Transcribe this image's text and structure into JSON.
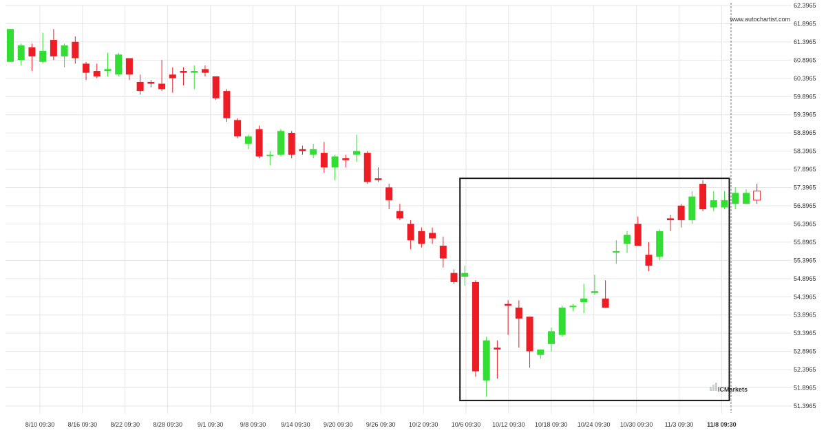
{
  "chart_data": {
    "type": "candlestick",
    "source_label": "www.autochartist.com",
    "brand_label": "ICMarkets",
    "y_ticks": [
      "62.3965",
      "61.8965",
      "61.3965",
      "60.8965",
      "60.3965",
      "59.8965",
      "59.3965",
      "58.8965",
      "58.3965",
      "57.8965",
      "57.3965",
      "56.8965",
      "56.3965",
      "55.8965",
      "55.3965",
      "54.8965",
      "54.3965",
      "53.8965",
      "53.3965",
      "52.8965",
      "52.3965",
      "51.8965",
      "51.3965"
    ],
    "ylim": [
      51.3965,
      62.3965
    ],
    "x_ticks": [
      "8/10 09:30",
      "8/16 09:30",
      "8/22 09:30",
      "8/28 09:30",
      "9/1 09:30",
      "9/8 09:30",
      "9/14 09:30",
      "9/20 09:30",
      "9/26 09:30",
      "10/2 09:30",
      "10/6 09:30",
      "10/12 09:30",
      "10/18 09:30",
      "10/24 09:30",
      "10/30 09:30",
      "11/3 09:30",
      "11/8 09:30"
    ],
    "x_tick_highlight": "11/8 09:30",
    "pattern_box": {
      "start_index": 42,
      "end_index": 66,
      "top": 57.65,
      "bottom": 51.55
    },
    "candles": [
      {
        "o": 60.85,
        "h": 61.75,
        "l": 60.85,
        "c": 61.75
      },
      {
        "o": 60.9,
        "h": 61.35,
        "l": 60.75,
        "c": 61.3
      },
      {
        "o": 61.25,
        "h": 61.35,
        "l": 60.6,
        "c": 61.0
      },
      {
        "o": 60.85,
        "h": 61.65,
        "l": 60.8,
        "c": 61.15
      },
      {
        "o": 61.45,
        "h": 61.75,
        "l": 60.9,
        "c": 61.0
      },
      {
        "o": 61.0,
        "h": 61.35,
        "l": 60.7,
        "c": 61.3
      },
      {
        "o": 61.4,
        "h": 61.55,
        "l": 60.8,
        "c": 60.95
      },
      {
        "o": 60.8,
        "h": 60.85,
        "l": 60.35,
        "c": 60.55
      },
      {
        "o": 60.6,
        "h": 60.8,
        "l": 60.4,
        "c": 60.45
      },
      {
        "o": 60.6,
        "h": 61.1,
        "l": 60.45,
        "c": 60.65
      },
      {
        "o": 60.5,
        "h": 61.1,
        "l": 60.45,
        "c": 61.05
      },
      {
        "o": 60.95,
        "h": 60.95,
        "l": 60.35,
        "c": 60.5
      },
      {
        "o": 60.3,
        "h": 60.5,
        "l": 59.95,
        "c": 60.05
      },
      {
        "o": 60.3,
        "h": 60.35,
        "l": 60.15,
        "c": 60.25
      },
      {
        "o": 60.25,
        "h": 60.9,
        "l": 60.05,
        "c": 60.1
      },
      {
        "o": 60.5,
        "h": 60.7,
        "l": 60.0,
        "c": 60.4
      },
      {
        "o": 60.6,
        "h": 60.7,
        "l": 60.2,
        "c": 60.55
      },
      {
        "o": 60.55,
        "h": 60.75,
        "l": 60.1,
        "c": 60.6
      },
      {
        "o": 60.65,
        "h": 60.75,
        "l": 60.45,
        "c": 60.55
      },
      {
        "o": 60.45,
        "h": 60.45,
        "l": 59.8,
        "c": 59.85
      },
      {
        "o": 60.05,
        "h": 60.1,
        "l": 59.2,
        "c": 59.3
      },
      {
        "o": 59.25,
        "h": 59.3,
        "l": 58.75,
        "c": 58.8
      },
      {
        "o": 58.6,
        "h": 58.85,
        "l": 58.45,
        "c": 58.8
      },
      {
        "o": 59.0,
        "h": 59.1,
        "l": 58.2,
        "c": 58.25
      },
      {
        "o": 58.3,
        "h": 58.4,
        "l": 58.0,
        "c": 58.3
      },
      {
        "o": 58.3,
        "h": 59.0,
        "l": 58.25,
        "c": 58.95
      },
      {
        "o": 58.9,
        "h": 58.95,
        "l": 58.2,
        "c": 58.3
      },
      {
        "o": 58.45,
        "h": 58.55,
        "l": 58.3,
        "c": 58.4
      },
      {
        "o": 58.3,
        "h": 58.6,
        "l": 58.2,
        "c": 58.45
      },
      {
        "o": 58.35,
        "h": 58.65,
        "l": 57.8,
        "c": 57.95
      },
      {
        "o": 57.95,
        "h": 58.3,
        "l": 57.6,
        "c": 58.25
      },
      {
        "o": 58.2,
        "h": 58.3,
        "l": 57.95,
        "c": 58.15
      },
      {
        "o": 58.3,
        "h": 58.85,
        "l": 58.1,
        "c": 58.4
      },
      {
        "o": 58.35,
        "h": 58.4,
        "l": 57.5,
        "c": 57.55
      },
      {
        "o": 57.65,
        "h": 57.95,
        "l": 57.55,
        "c": 57.6
      },
      {
        "o": 57.4,
        "h": 57.5,
        "l": 56.8,
        "c": 57.05
      },
      {
        "o": 56.75,
        "h": 56.95,
        "l": 56.5,
        "c": 56.55
      },
      {
        "o": 56.4,
        "h": 56.5,
        "l": 55.7,
        "c": 55.95
      },
      {
        "o": 56.2,
        "h": 56.3,
        "l": 55.75,
        "c": 55.85
      },
      {
        "o": 56.15,
        "h": 56.3,
        "l": 55.85,
        "c": 56.0
      },
      {
        "o": 55.8,
        "h": 56.05,
        "l": 55.2,
        "c": 55.45
      },
      {
        "o": 55.05,
        "h": 55.15,
        "l": 54.75,
        "c": 54.8
      },
      {
        "o": 54.95,
        "h": 55.25,
        "l": 54.7,
        "c": 55.05
      },
      {
        "o": 54.8,
        "h": 54.85,
        "l": 52.2,
        "c": 52.35
      },
      {
        "o": 52.1,
        "h": 53.3,
        "l": 51.65,
        "c": 53.2
      },
      {
        "o": 53.0,
        "h": 53.2,
        "l": 52.15,
        "c": 52.95
      },
      {
        "o": 54.2,
        "h": 54.3,
        "l": 53.35,
        "c": 54.15
      },
      {
        "o": 54.1,
        "h": 54.3,
        "l": 53.0,
        "c": 53.8
      },
      {
        "o": 53.85,
        "h": 53.85,
        "l": 52.45,
        "c": 52.9
      },
      {
        "o": 52.8,
        "h": 52.95,
        "l": 52.7,
        "c": 52.95
      },
      {
        "o": 53.1,
        "h": 53.55,
        "l": 52.9,
        "c": 53.45
      },
      {
        "o": 53.35,
        "h": 54.15,
        "l": 53.3,
        "c": 54.1
      },
      {
        "o": 54.15,
        "h": 54.2,
        "l": 54.0,
        "c": 54.15
      },
      {
        "o": 54.25,
        "h": 54.75,
        "l": 53.95,
        "c": 54.35
      },
      {
        "o": 54.5,
        "h": 55.0,
        "l": 54.45,
        "c": 54.55
      },
      {
        "o": 54.35,
        "h": 54.85,
        "l": 54.1,
        "c": 54.1
      },
      {
        "o": 55.65,
        "h": 55.95,
        "l": 55.3,
        "c": 55.65
      },
      {
        "o": 55.85,
        "h": 56.2,
        "l": 55.6,
        "c": 56.1
      },
      {
        "o": 56.4,
        "h": 56.6,
        "l": 55.8,
        "c": 55.8
      },
      {
        "o": 55.55,
        "h": 55.9,
        "l": 55.1,
        "c": 55.25
      },
      {
        "o": 55.5,
        "h": 56.25,
        "l": 55.4,
        "c": 56.2
      },
      {
        "o": 56.55,
        "h": 56.65,
        "l": 56.2,
        "c": 56.5
      },
      {
        "o": 56.9,
        "h": 56.95,
        "l": 56.3,
        "c": 56.5
      },
      {
        "o": 56.5,
        "h": 57.3,
        "l": 56.4,
        "c": 57.15
      },
      {
        "o": 57.5,
        "h": 57.6,
        "l": 56.75,
        "c": 56.8
      },
      {
        "o": 56.85,
        "h": 57.3,
        "l": 56.75,
        "c": 57.05
      },
      {
        "o": 56.85,
        "h": 57.3,
        "l": 56.8,
        "c": 57.05
      },
      {
        "o": 56.95,
        "h": 57.4,
        "l": 56.8,
        "c": 57.25
      },
      {
        "o": 56.95,
        "h": 57.35,
        "l": 56.95,
        "c": 57.25
      },
      {
        "o": 57.3,
        "h": 57.5,
        "l": 56.95,
        "c": 57.05
      }
    ],
    "colors": {
      "up": "#33dd33",
      "down": "#ee1c24",
      "box": "#111111",
      "grid": "#e6e6e6",
      "text": "#333333",
      "brand": "#c8d0d6"
    }
  }
}
